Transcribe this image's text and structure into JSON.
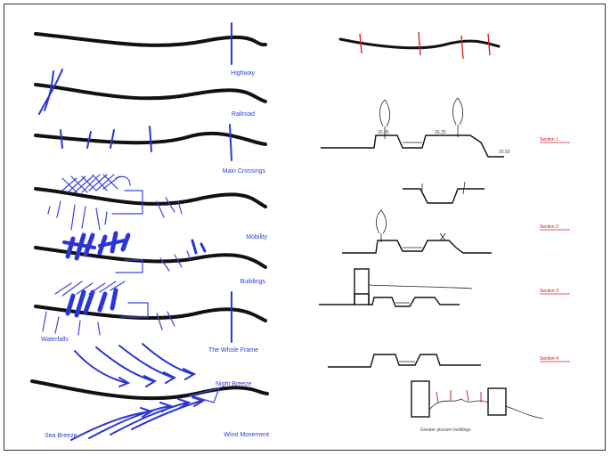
{
  "diagram": {
    "left_labels": [
      "Highway",
      "Railroad",
      "Main Crossings",
      "Mobility",
      "Buildings",
      "The Whole Frame",
      "Wind Movement"
    ],
    "extra_labels": {
      "waterfalls": "Waterfalls",
      "night_breeze": "Night Breeze",
      "sea_breeze": "Sea Breeze"
    },
    "section_labels": [
      "Section 1",
      "Section 2",
      "Section 3",
      "Section 4"
    ],
    "bottom_caption": "Greater pluvium buildings",
    "colors": {
      "ink": "#111111",
      "annotation_blue": "#2a35d8",
      "accent_red": "#d22222"
    }
  }
}
